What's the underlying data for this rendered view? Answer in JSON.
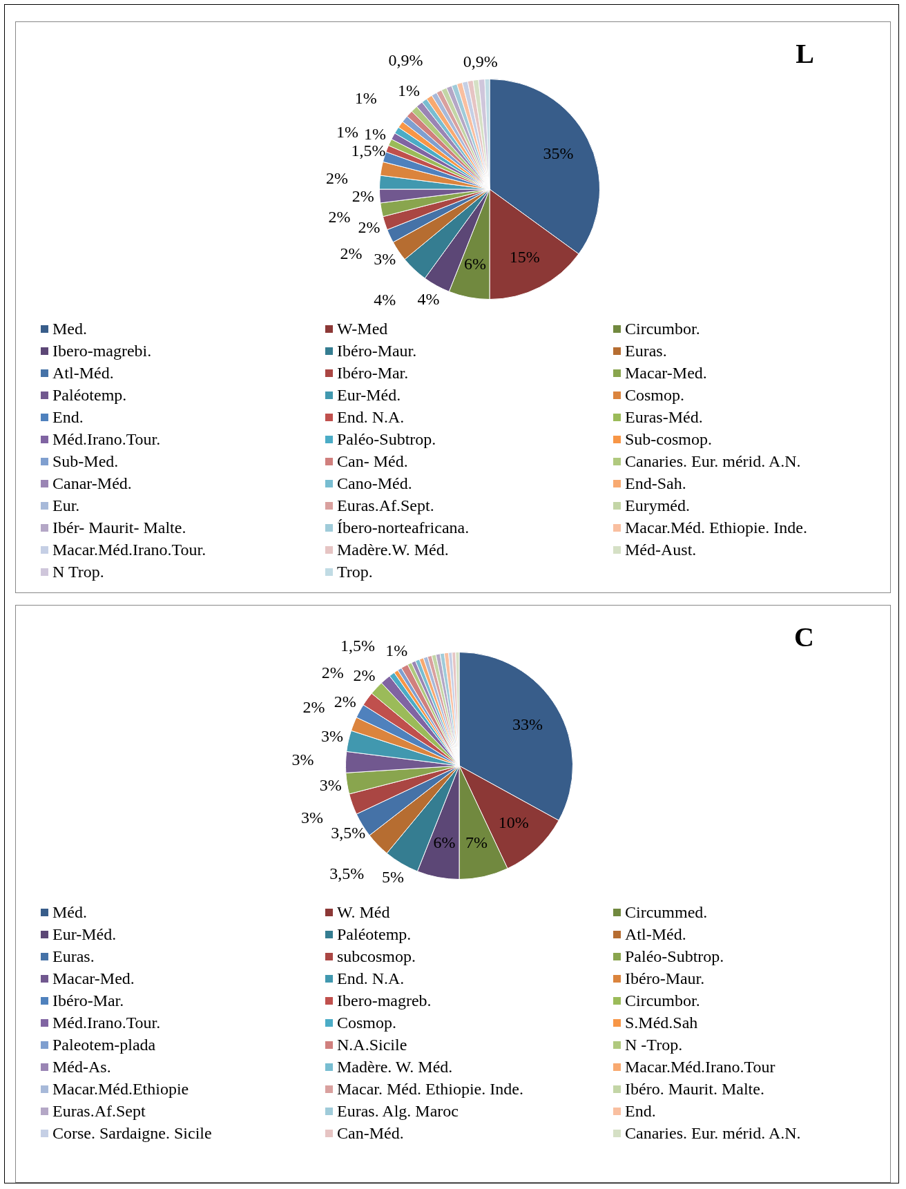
{
  "chart_data": [
    {
      "type": "pie",
      "title": "L",
      "legend": "bottom",
      "categories": [
        "Med.",
        "W-Med",
        "Circumbor.",
        "Ibero-magrebi.",
        "Ibéro-Maur.",
        "Euras.",
        "Atl-Méd.",
        "Ibéro-Mar.",
        "Macar-Med.",
        "Paléotemp.",
        "Eur-Méd.",
        "Cosmop.",
        "End.",
        "End. N.A.",
        "Euras-Méd.",
        "Méd.Irano.Tour.",
        "Paléo-Subtrop.",
        "Sub-cosmop.",
        "Sub-Med.",
        "Can- Méd.",
        "Canaries. Eur. mérid. A.N.",
        "Canar-Méd.",
        "Cano-Méd.",
        "End-Sah.",
        "Eur.",
        "Euras.Af.Sept.",
        "Euryméd.",
        "Ibér- Maurit- Malte.",
        "Íbero-norteafricana.",
        "Macar.Méd. Ethiopie. Inde.",
        "Macar.Méd.Irano.Tour.",
        "Madère.W. Méd.",
        "Méd-Aust.",
        "N Trop.",
        "Trop."
      ],
      "values": [
        35,
        15,
        6,
        4,
        4,
        3,
        2,
        2,
        2,
        2,
        2,
        2,
        1.5,
        1,
        1,
        1,
        1,
        1,
        1,
        1,
        1,
        1,
        0.8,
        0.9,
        0.8,
        0.8,
        0.8,
        0.8,
        0.8,
        0.8,
        0.8,
        0.8,
        0.8,
        0.9,
        0.7
      ],
      "value_labels": [
        "35%",
        "15%",
        "6%",
        "4%",
        "4%",
        "3%",
        "2%",
        "2%",
        "2%",
        "2%",
        "2%",
        null,
        "1,5%",
        "1%",
        "1%",
        null,
        null,
        "1%",
        null,
        null,
        null,
        "1%",
        null,
        "0,9%",
        null,
        null,
        null,
        null,
        null,
        null,
        null,
        null,
        null,
        "0,9%",
        null
      ],
      "colors": [
        "#385d8a",
        "#8c3836",
        "#71893f",
        "#5c4776",
        "#357d91",
        "#b66d31",
        "#4572a7",
        "#aa4643",
        "#89a54e",
        "#71588f",
        "#4198af",
        "#db843d",
        "#4f81bd",
        "#c0504d",
        "#9bbb59",
        "#8064a2",
        "#4bacc6",
        "#f79646",
        "#7f9fcf",
        "#d07f7d",
        "#b0c97e",
        "#9a85b4",
        "#78bdd1",
        "#f8a970",
        "#a7b9d9",
        "#d9a09e",
        "#c3d5a6",
        "#b4a7c6",
        "#9fcbd9",
        "#f9bfa0",
        "#c5cfe5",
        "#e6c4c3",
        "#d5e0c5",
        "#cfc6db",
        "#c0dbe4"
      ]
    },
    {
      "type": "pie",
      "title": "C",
      "legend": "bottom",
      "categories": [
        "Méd.",
        "W. Méd",
        "Circummed.",
        "Eur-Méd.",
        "Paléotemp.",
        "Atl-Méd.",
        "Euras.",
        "subcosmop.",
        "Paléo-Subtrop.",
        "Macar-Med.",
        "End. N.A.",
        "Ibéro-Maur.",
        "Ibéro-Mar.",
        "Ibero-magreb.",
        "Circumbor.",
        "Méd.Irano.Tour.",
        "Cosmop.",
        "S.Méd.Sah",
        "Paleotem-plada",
        "N.A.Sicile",
        "N -Trop.",
        "Méd-As.",
        "Madère. W. Méd.",
        "Macar.Méd.Irano.Tour",
        "Macar.Méd.Ethiopie",
        "Macar. Méd.  Ethiopie. Inde.",
        "Ibéro. Maurit. Malte.",
        "Euras.Af.Sept",
        "Euras. Alg. Maroc",
        "End.",
        "Corse. Sardaigne. Sicile",
        "Can-Méd.",
        "Canaries. Eur. mérid. A.N."
      ],
      "values": [
        33,
        10,
        7,
        6,
        5,
        3.5,
        3.5,
        3,
        3,
        3,
        3,
        2,
        2,
        2,
        2,
        1.5,
        0.8,
        0.6,
        0.6,
        1,
        0.6,
        0.6,
        0.6,
        0.6,
        0.6,
        0.6,
        0.6,
        0.6,
        0.6,
        0.6,
        0.5,
        0.5,
        0.5
      ],
      "value_labels": [
        "33%",
        "10%",
        "7%",
        "6%",
        "5%",
        "3,5%",
        "3,5%",
        "3%",
        "3%",
        "3%",
        "3%",
        "2%",
        "2%",
        "2%",
        "2%",
        "1,5%",
        null,
        null,
        null,
        "1%",
        null,
        null,
        null,
        null,
        null,
        null,
        null,
        null,
        null,
        null,
        null,
        null,
        null
      ],
      "colors": [
        "#385d8a",
        "#8c3836",
        "#71893f",
        "#5c4776",
        "#357d91",
        "#b66d31",
        "#4572a7",
        "#aa4643",
        "#89a54e",
        "#71588f",
        "#4198af",
        "#db843d",
        "#4f81bd",
        "#c0504d",
        "#9bbb59",
        "#8064a2",
        "#4bacc6",
        "#f79646",
        "#7f9fcf",
        "#d07f7d",
        "#b0c97e",
        "#9a85b4",
        "#78bdd1",
        "#f8a970",
        "#a7b9d9",
        "#d9a09e",
        "#c3d5a6",
        "#b4a7c6",
        "#9fcbd9",
        "#f9bfa0",
        "#c5cfe5",
        "#e6c4c3",
        "#d5e0c5"
      ]
    }
  ]
}
